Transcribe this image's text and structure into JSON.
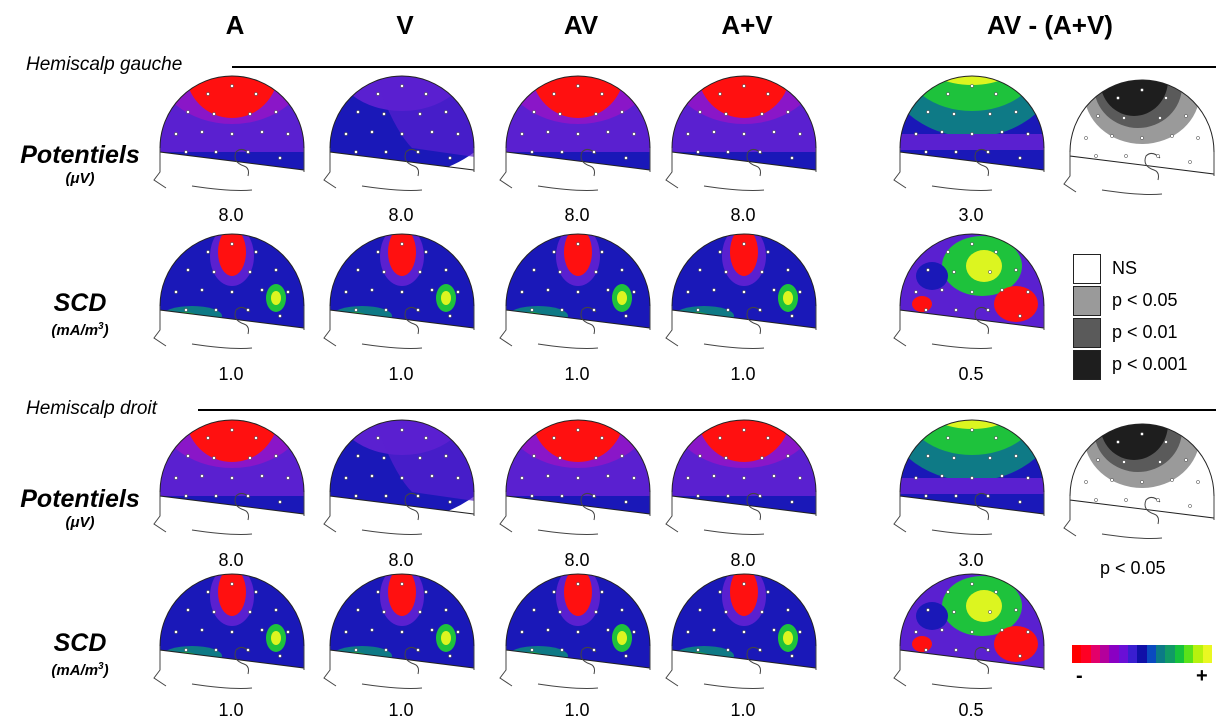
{
  "columns": [
    "A",
    "V",
    "AV",
    "A+V",
    "AV - (A+V)"
  ],
  "sections": {
    "left": "Hemiscalp gauche",
    "right": "Hemiscalp droit"
  },
  "row_labels": {
    "potentials": "Potentiels",
    "potentials_unit": "(μV)",
    "scd": "SCD",
    "scd_unit_base": "(mA/m",
    "scd_unit_sup": "3",
    "scd_unit_end": ")"
  },
  "scales": {
    "left_pot": [
      "8.0",
      "8.0",
      "8.0",
      "8.0",
      "3.0"
    ],
    "left_scd": [
      "1.0",
      "1.0",
      "1.0",
      "1.0",
      "0.5"
    ],
    "right_pot": [
      "8.0",
      "8.0",
      "8.0",
      "8.0",
      "3.0"
    ],
    "right_scd": [
      "1.0",
      "1.0",
      "1.0",
      "1.0",
      "0.5"
    ]
  },
  "significance_legend": [
    {
      "label": "NS",
      "color": "#ffffff"
    },
    {
      "label": "p < 0.05",
      "color": "#9a9a9a"
    },
    {
      "label": "p < 0.01",
      "color": "#5a5a5a"
    },
    {
      "label": "p < 0.001",
      "color": "#1e1e1e"
    }
  ],
  "significance_note": "p < 0.05",
  "colorbar": {
    "min_label": "-",
    "max_label": "+",
    "colors": [
      "#ff0000",
      "#ff0024",
      "#e3006a",
      "#b4009c",
      "#8a00c3",
      "#6a0fd6",
      "#3a1ed0",
      "#1010a8",
      "#0a4ac0",
      "#0c7a86",
      "#119a66",
      "#16c23c",
      "#5ae21a",
      "#b6f20e",
      "#eaf822"
    ]
  },
  "colors": {
    "red": "#ff1010",
    "magenta": "#d0109a",
    "purple": "#8a16c8",
    "violet": "#5a20d0",
    "blue": "#1a18b8",
    "teal": "#0e7a86",
    "green": "#1ec23c",
    "yellow": "#dcf520"
  }
}
